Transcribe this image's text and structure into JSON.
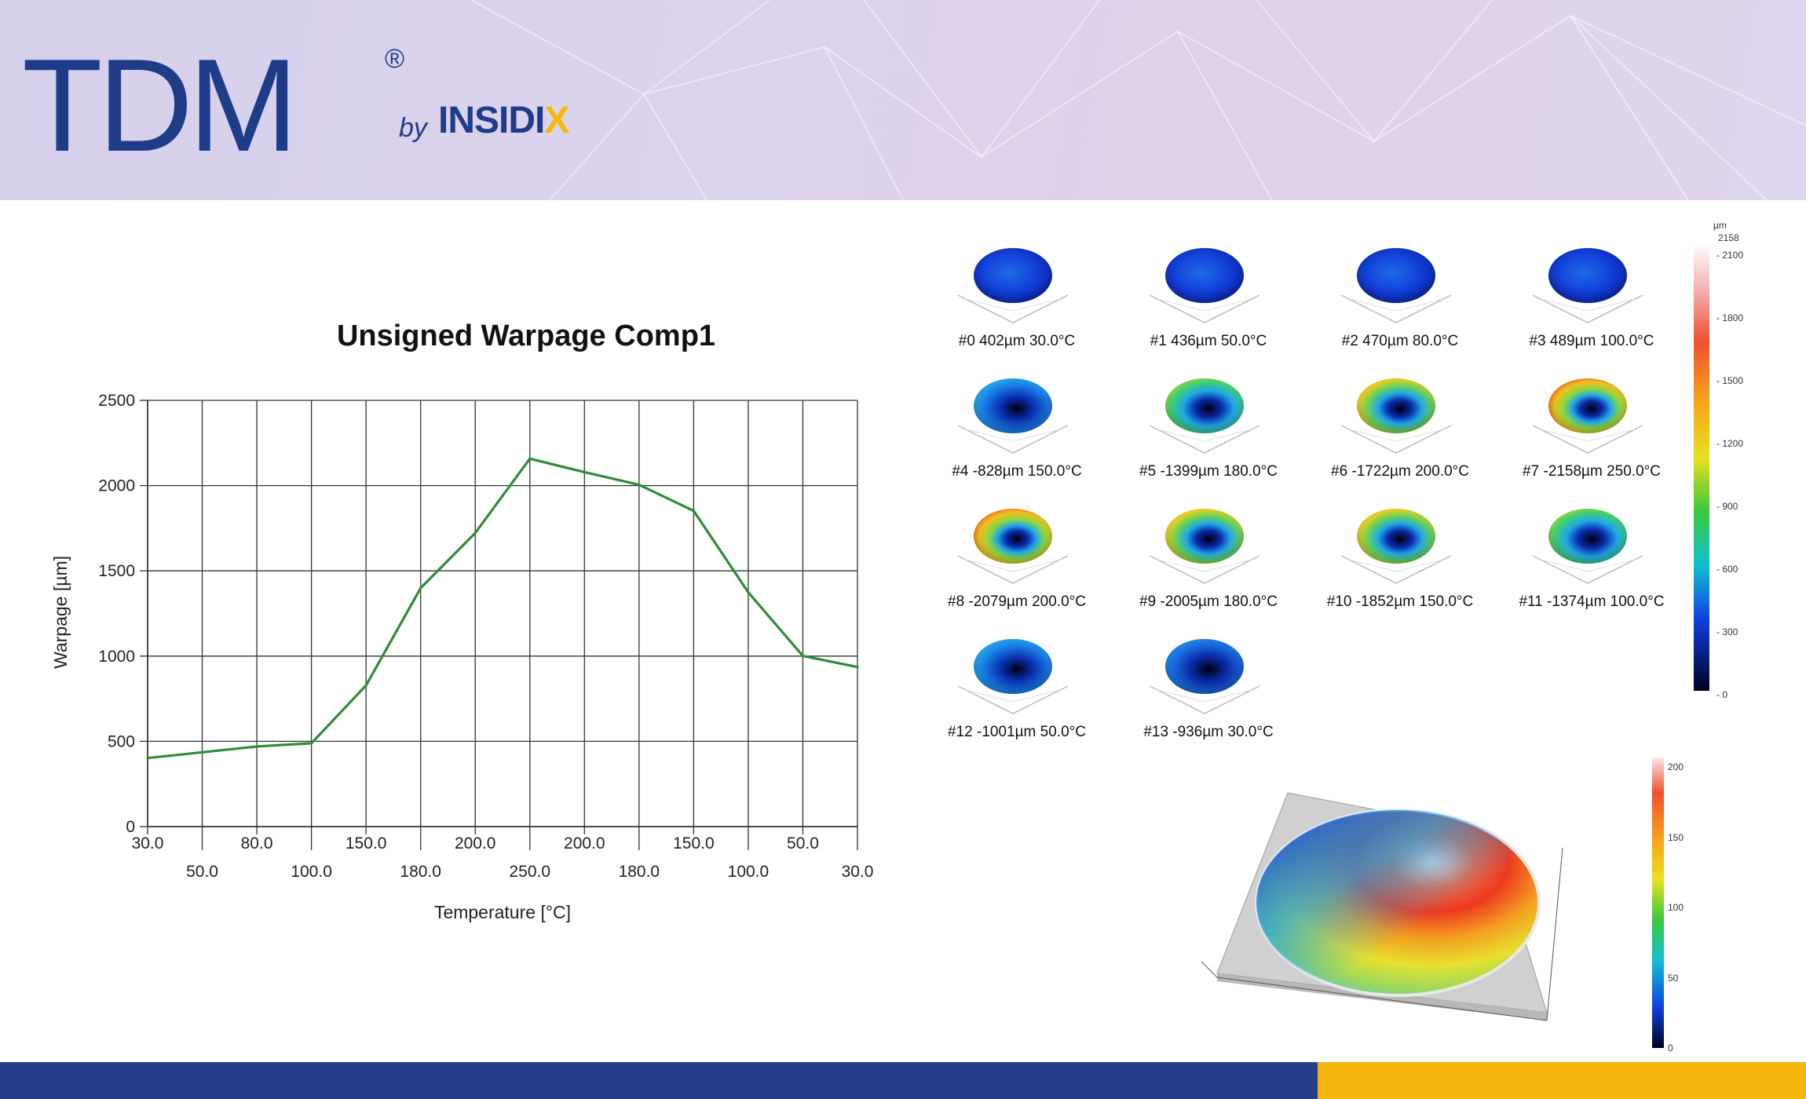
{
  "brand": {
    "name": "TDM",
    "registered": "®",
    "by": "by",
    "company_main": "INSIDI",
    "company_accent": "X"
  },
  "colors": {
    "brand_blue": "#1f3c88",
    "brand_yellow": "#f6b800",
    "line": "#2e8b3a",
    "footer_blue": "#253f8a",
    "footer_yellow": "#f5b50f"
  },
  "chart_data": {
    "type": "line",
    "title": "Unsigned Warpage Comp1",
    "xlabel": "Temperature [°C]",
    "ylabel": "Warpage [µm]",
    "ylim": [
      0,
      2500
    ],
    "yticks": [
      "0",
      "500",
      "1000",
      "1500",
      "2000",
      "2500"
    ],
    "categories": [
      "30.0",
      "50.0",
      "80.0",
      "100.0",
      "150.0",
      "180.0",
      "200.0",
      "250.0",
      "200.0",
      "180.0",
      "150.0",
      "100.0",
      "50.0",
      "30.0"
    ],
    "series": [
      {
        "values": [
          402,
          436,
          470,
          489,
          828,
          1399,
          1722,
          2158,
          2079,
          2005,
          1852,
          1374,
          1001,
          936
        ]
      }
    ],
    "grid": true
  },
  "thumbnails": [
    {
      "caption": "#0 402µm 30.0°C",
      "style": "blue"
    },
    {
      "caption": "#1 436µm 50.0°C",
      "style": "blue"
    },
    {
      "caption": "#2 470µm 80.0°C",
      "style": "blue"
    },
    {
      "caption": "#3 489µm 100.0°C",
      "style": "blue"
    },
    {
      "caption": "#4 -828µm 150.0°C",
      "style": "cyan"
    },
    {
      "caption": "#5 -1399µm 180.0°C",
      "style": "yellow"
    },
    {
      "caption": "#6 -1722µm 200.0°C",
      "style": "orange"
    },
    {
      "caption": "#7 -2158µm 250.0°C",
      "style": "red"
    },
    {
      "caption": "#8 -2079µm 200.0°C",
      "style": "red"
    },
    {
      "caption": "#9 -2005µm 180.0°C",
      "style": "orange"
    },
    {
      "caption": "#10 -1852µm 150.0°C",
      "style": "orange"
    },
    {
      "caption": "#11 -1374µm 100.0°C",
      "style": "yellow"
    },
    {
      "caption": "#12 -1001µm 50.0°C",
      "style": "cyan"
    },
    {
      "caption": "#13 -936µm 30.0°C",
      "style": "cyanblue"
    }
  ],
  "colorbar_top": {
    "unit": "µm",
    "max": "2158",
    "labels": [
      "2100",
      "1800",
      "1500",
      "1200",
      "900",
      "600",
      "300",
      "0"
    ]
  },
  "colorbar_bottom": {
    "labels": [
      "200",
      "150",
      "100",
      "50",
      "0"
    ]
  }
}
